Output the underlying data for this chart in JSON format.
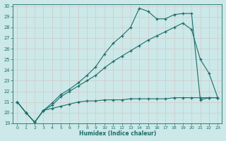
{
  "xlabel": "Humidex (Indice chaleur)",
  "bg_color": "#cce8e8",
  "grid_color": "#c8d8d8",
  "line_color": "#1a6e6a",
  "xlim": [
    -0.5,
    23.5
  ],
  "ylim": [
    19,
    30.2
  ],
  "xticks": [
    0,
    1,
    2,
    3,
    4,
    5,
    6,
    7,
    8,
    9,
    10,
    11,
    12,
    13,
    14,
    15,
    16,
    17,
    18,
    19,
    20,
    21,
    22,
    23
  ],
  "yticks": [
    19,
    20,
    21,
    22,
    23,
    24,
    25,
    26,
    27,
    28,
    29,
    30
  ],
  "line_flat_x": [
    0,
    1,
    2,
    3,
    4,
    5,
    6,
    7,
    8,
    9,
    10,
    11,
    12,
    13,
    14,
    15,
    16,
    17,
    18,
    19,
    20,
    21,
    22,
    23
  ],
  "line_flat_y": [
    21.0,
    20.0,
    19.1,
    20.2,
    20.4,
    20.6,
    20.8,
    21.0,
    21.1,
    21.1,
    21.2,
    21.2,
    21.2,
    21.3,
    21.3,
    21.3,
    21.3,
    21.3,
    21.4,
    21.4,
    21.4,
    21.4,
    21.4,
    21.4
  ],
  "line_mid_x": [
    0,
    1,
    2,
    3,
    4,
    5,
    6,
    7,
    8,
    9,
    10,
    11,
    12,
    13,
    14,
    15,
    16,
    17,
    18,
    19,
    20,
    21,
    22,
    23
  ],
  "line_mid_y": [
    21.0,
    20.0,
    19.1,
    20.2,
    20.7,
    21.5,
    22.0,
    22.5,
    23.0,
    23.5,
    24.2,
    24.8,
    25.3,
    25.8,
    26.3,
    26.8,
    27.2,
    27.6,
    28.0,
    28.4,
    27.8,
    25.0,
    23.7,
    21.4
  ],
  "line_top_x": [
    0,
    1,
    2,
    3,
    4,
    5,
    6,
    7,
    8,
    9,
    10,
    11,
    12,
    13,
    14,
    15,
    16,
    17,
    18,
    19,
    20,
    21,
    22,
    23
  ],
  "line_top_y": [
    21.0,
    20.0,
    19.1,
    20.2,
    20.9,
    21.7,
    22.2,
    22.8,
    23.5,
    24.3,
    25.5,
    26.5,
    27.2,
    28.0,
    29.8,
    29.5,
    28.8,
    28.8,
    29.2,
    29.3,
    29.3,
    21.2,
    21.4,
    21.4
  ]
}
